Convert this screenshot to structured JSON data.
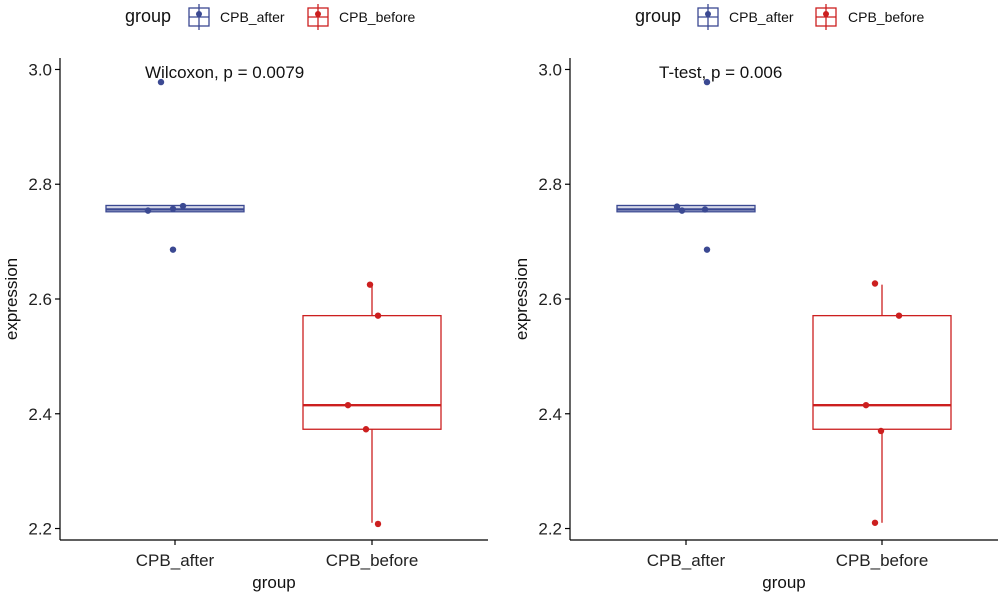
{
  "legend": {
    "title": "group",
    "entries": [
      {
        "name": "CPB_after",
        "color": "#3B4992"
      },
      {
        "name": "CPB_before",
        "color": "#CC1F1F"
      }
    ]
  },
  "chart_data": [
    {
      "type": "box",
      "annotation": "Wilcoxon, p = 0.0079",
      "xlabel": "group",
      "ylabel": "expression",
      "ylim": [
        2.18,
        3.02
      ],
      "yticks": [
        "2.2",
        "2.4",
        "2.6",
        "2.8",
        "3.0"
      ],
      "ytick_values": [
        2.2,
        2.4,
        2.6,
        2.8,
        3.0
      ],
      "categories": [
        "CPB_after",
        "CPB_before"
      ],
      "boxes": [
        {
          "group": "CPB_after",
          "color": "#3B4992",
          "lower_whisker": 2.752,
          "q1": 2.752,
          "median": 2.756,
          "q3": 2.763,
          "upper_whisker": 2.763,
          "points": [
            [
              -0.14,
              2.978
            ],
            [
              -0.27,
              2.754
            ],
            [
              -0.02,
              2.757
            ],
            [
              0.08,
              2.762
            ],
            [
              -0.02,
              2.686
            ]
          ]
        },
        {
          "group": "CPB_before",
          "color": "#CC1F1F",
          "lower_whisker": 2.21,
          "q1": 2.373,
          "median": 2.415,
          "q3": 2.571,
          "upper_whisker": 2.625,
          "points": [
            [
              -0.02,
              2.625
            ],
            [
              0.06,
              2.571
            ],
            [
              -0.24,
              2.415
            ],
            [
              -0.06,
              2.373
            ],
            [
              0.06,
              2.208
            ]
          ]
        }
      ]
    },
    {
      "type": "box",
      "annotation": "T-test, p = 0.006",
      "xlabel": "group",
      "ylabel": "expression",
      "ylim": [
        2.18,
        3.02
      ],
      "yticks": [
        "2.2",
        "2.4",
        "2.6",
        "2.8",
        "3.0"
      ],
      "ytick_values": [
        2.2,
        2.4,
        2.6,
        2.8,
        3.0
      ],
      "categories": [
        "CPB_after",
        "CPB_before"
      ],
      "boxes": [
        {
          "group": "CPB_after",
          "color": "#3B4992",
          "lower_whisker": 2.752,
          "q1": 2.752,
          "median": 2.756,
          "q3": 2.763,
          "upper_whisker": 2.763,
          "points": [
            [
              0.21,
              2.978
            ],
            [
              -0.09,
              2.761
            ],
            [
              -0.04,
              2.754
            ],
            [
              0.19,
              2.756
            ],
            [
              0.21,
              2.686
            ]
          ]
        },
        {
          "group": "CPB_before",
          "color": "#CC1F1F",
          "lower_whisker": 2.21,
          "q1": 2.373,
          "median": 2.415,
          "q3": 2.571,
          "upper_whisker": 2.625,
          "points": [
            [
              -0.07,
              2.627
            ],
            [
              0.17,
              2.571
            ],
            [
              -0.16,
              2.415
            ],
            [
              -0.01,
              2.37
            ],
            [
              -0.07,
              2.21
            ]
          ]
        }
      ]
    }
  ]
}
